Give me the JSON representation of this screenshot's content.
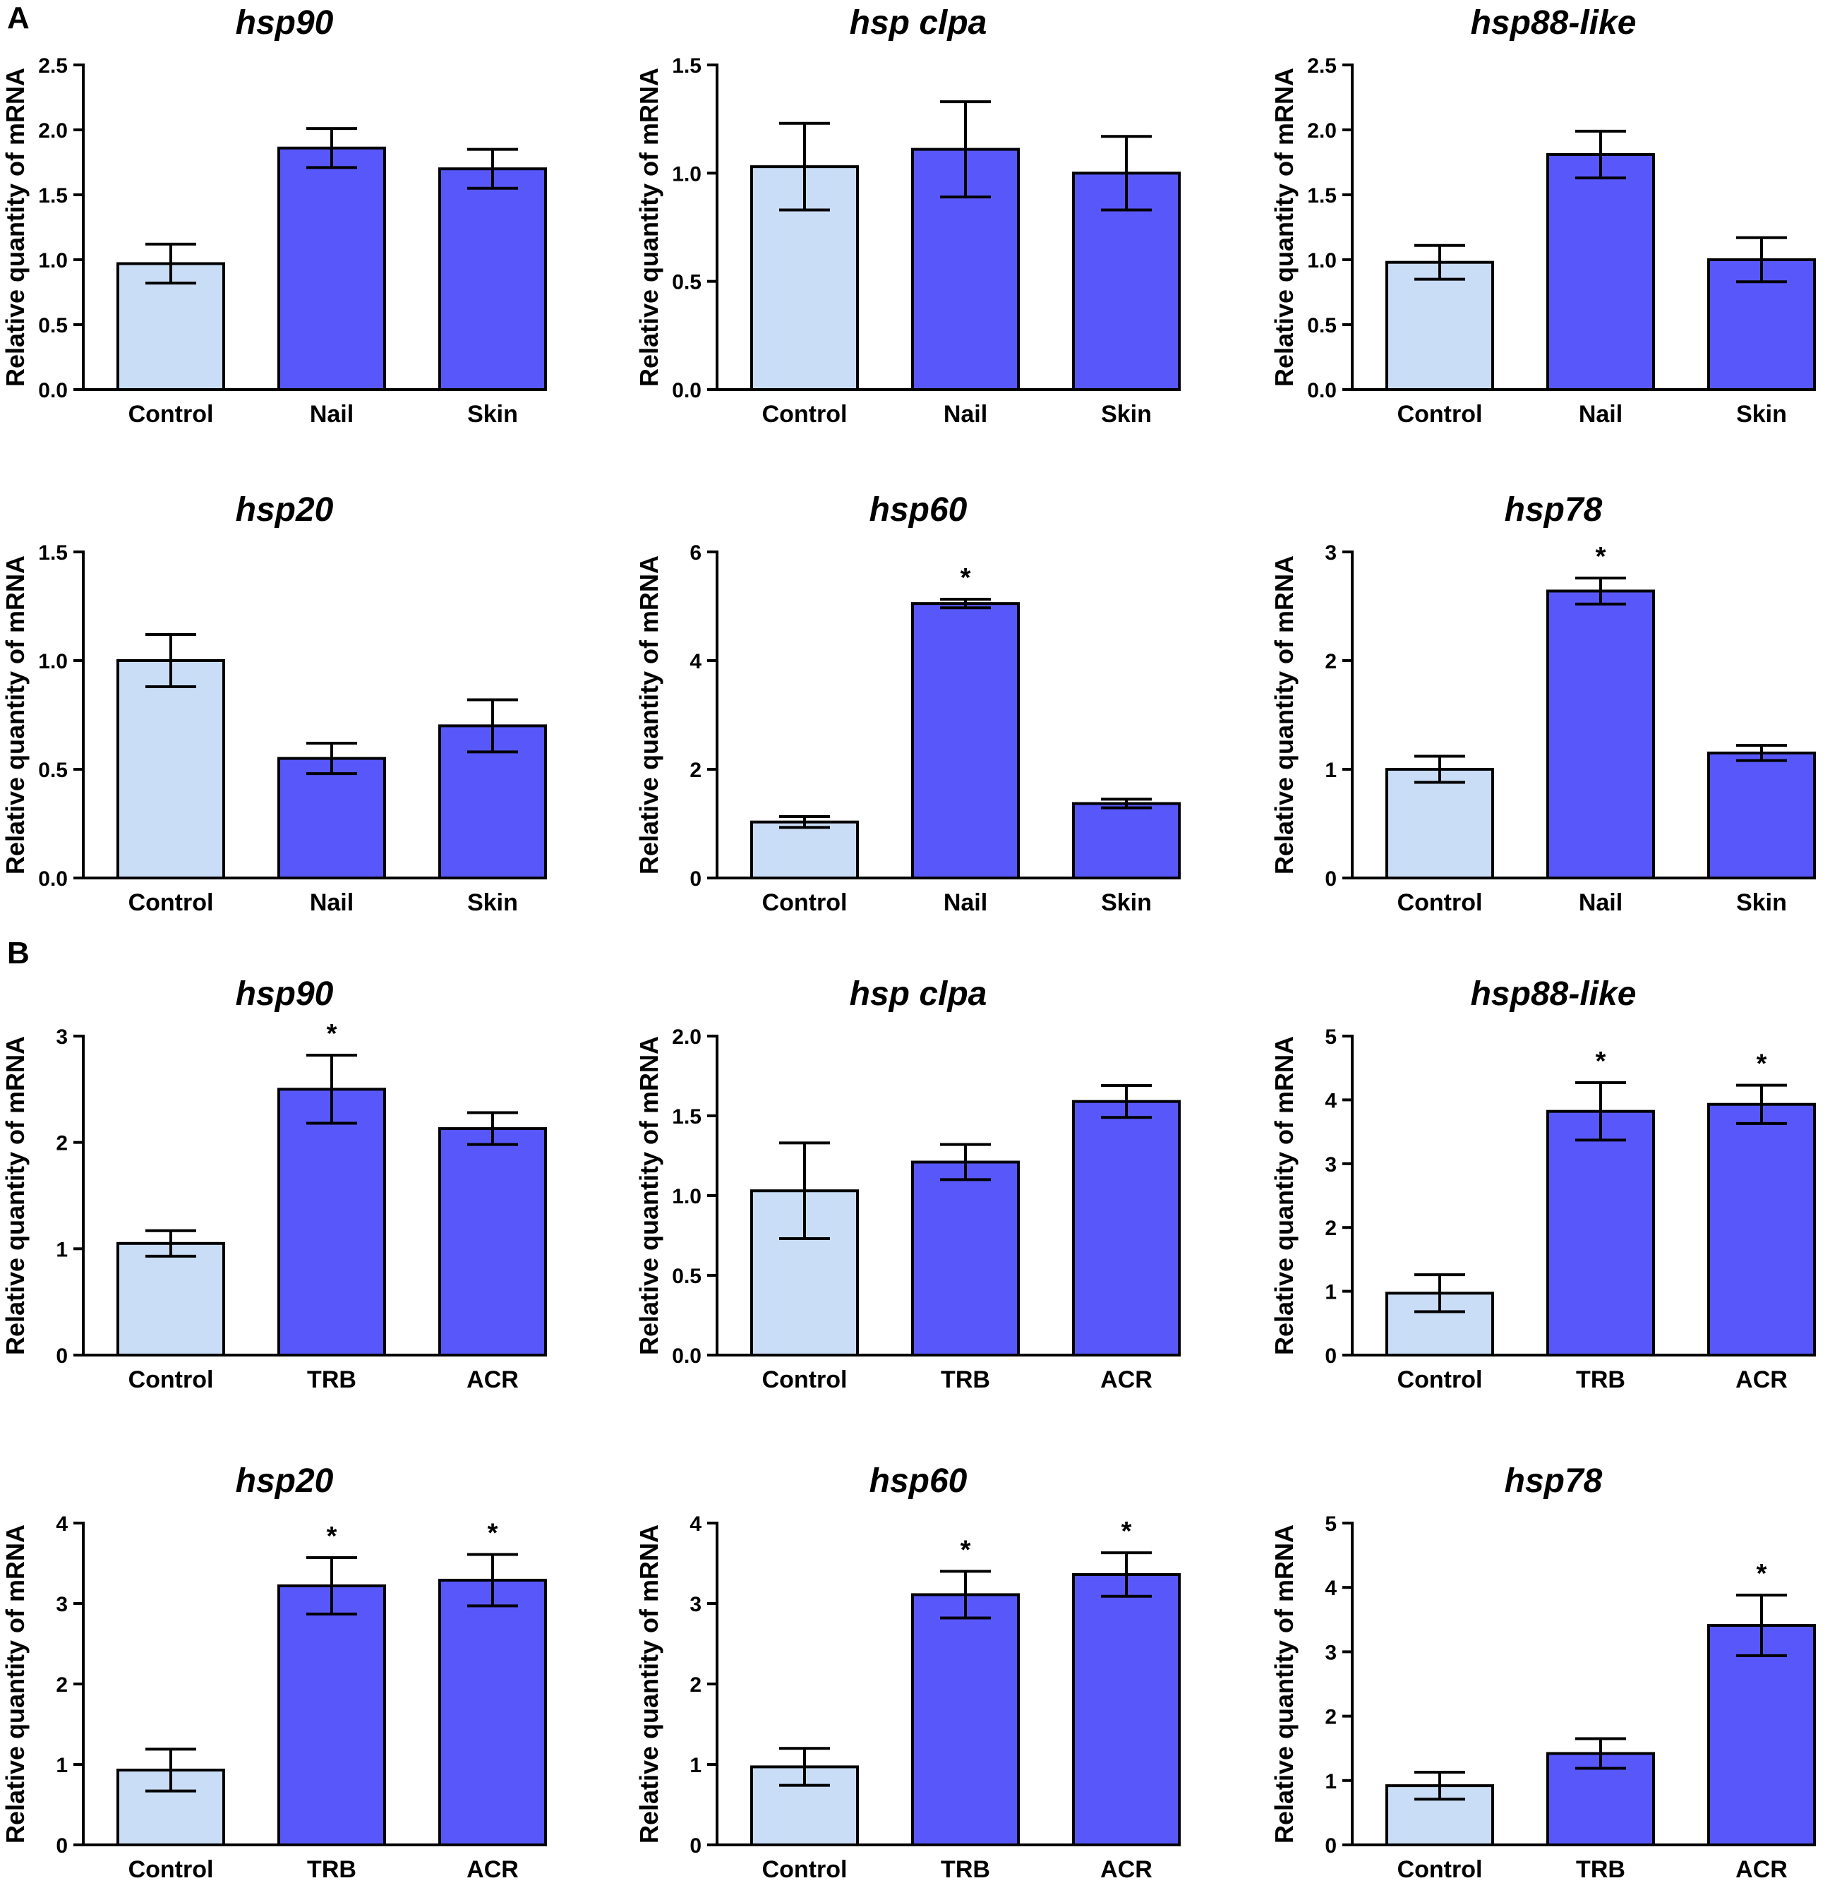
{
  "figure": {
    "panels": [
      {
        "letter": "A",
        "chart_indices": [
          0,
          1,
          2,
          3,
          4,
          5
        ]
      },
      {
        "letter": "B",
        "chart_indices": [
          6,
          7,
          8,
          9,
          10,
          11
        ]
      }
    ],
    "colors": {
      "control": "#c9ddf6",
      "treated": "#5858fa",
      "stroke": "#000000"
    }
  },
  "chart_data": [
    {
      "type": "bar",
      "panel": "A",
      "title": "hsp90",
      "ylabel": "Relative quantity of mRNA",
      "categories": [
        "Control",
        "Nail",
        "Skin"
      ],
      "values": [
        0.97,
        1.86,
        1.7
      ],
      "errors": [
        0.15,
        0.15,
        0.15
      ],
      "significant": [
        false,
        false,
        false
      ],
      "ylim": [
        0,
        2.5
      ],
      "yticks": [
        "0.0",
        "0.5",
        "1.0",
        "1.5",
        "2.0",
        "2.5"
      ]
    },
    {
      "type": "bar",
      "panel": "A",
      "title": "hsp clpa",
      "ylabel": "Relative quantity of mRNA",
      "categories": [
        "Control",
        "Nail",
        "Skin"
      ],
      "values": [
        1.03,
        1.11,
        1.0
      ],
      "errors": [
        0.2,
        0.22,
        0.17
      ],
      "significant": [
        false,
        false,
        false
      ],
      "ylim": [
        0,
        1.5
      ],
      "yticks": [
        "0.0",
        "0.5",
        "1.0",
        "1.5"
      ]
    },
    {
      "type": "bar",
      "panel": "A",
      "title": "hsp88-like",
      "ylabel": "Relative quantity of mRNA",
      "categories": [
        "Control",
        "Nail",
        "Skin"
      ],
      "values": [
        0.98,
        1.81,
        1.0
      ],
      "errors": [
        0.13,
        0.18,
        0.17
      ],
      "significant": [
        false,
        false,
        false
      ],
      "ylim": [
        0,
        2.5
      ],
      "yticks": [
        "0.0",
        "0.5",
        "1.0",
        "1.5",
        "2.0",
        "2.5"
      ]
    },
    {
      "type": "bar",
      "panel": "A",
      "title": "hsp20",
      "ylabel": "Relative quantity of mRNA",
      "categories": [
        "Control",
        "Nail",
        "Skin"
      ],
      "values": [
        1.0,
        0.55,
        0.7
      ],
      "errors": [
        0.12,
        0.07,
        0.12
      ],
      "significant": [
        false,
        false,
        false
      ],
      "ylim": [
        0,
        1.5
      ],
      "yticks": [
        "0.0",
        "0.5",
        "1.0",
        "1.5"
      ]
    },
    {
      "type": "bar",
      "panel": "A",
      "title": "hsp60",
      "ylabel": "Relative quantity of mRNA",
      "categories": [
        "Control",
        "Nail",
        "Skin"
      ],
      "values": [
        1.03,
        5.05,
        1.37
      ],
      "errors": [
        0.1,
        0.08,
        0.08
      ],
      "significant": [
        false,
        true,
        false
      ],
      "ylim": [
        0,
        6
      ],
      "yticks": [
        "0",
        "2",
        "4",
        "6"
      ]
    },
    {
      "type": "bar",
      "panel": "A",
      "title": "hsp78",
      "ylabel": "Relative quantity of mRNA",
      "categories": [
        "Control",
        "Nail",
        "Skin"
      ],
      "values": [
        1.0,
        2.64,
        1.15
      ],
      "errors": [
        0.12,
        0.12,
        0.07
      ],
      "significant": [
        false,
        true,
        false
      ],
      "ylim": [
        0,
        3
      ],
      "yticks": [
        "0",
        "1",
        "2",
        "3"
      ]
    },
    {
      "type": "bar",
      "panel": "B",
      "title": "hsp90",
      "ylabel": "Relative quantity of mRNA",
      "categories": [
        "Control",
        "TRB",
        "ACR"
      ],
      "values": [
        1.05,
        2.5,
        2.13
      ],
      "errors": [
        0.12,
        0.32,
        0.15
      ],
      "significant": [
        false,
        true,
        false
      ],
      "ylim": [
        0,
        3
      ],
      "yticks": [
        "0",
        "1",
        "2",
        "3"
      ]
    },
    {
      "type": "bar",
      "panel": "B",
      "title": "hsp clpa",
      "ylabel": "Relative quantity of mRNA",
      "categories": [
        "Control",
        "TRB",
        "ACR"
      ],
      "values": [
        1.03,
        1.21,
        1.59
      ],
      "errors": [
        0.3,
        0.11,
        0.1
      ],
      "significant": [
        false,
        false,
        false
      ],
      "ylim": [
        0,
        2.0
      ],
      "yticks": [
        "0.0",
        "0.5",
        "1.0",
        "1.5",
        "2.0"
      ]
    },
    {
      "type": "bar",
      "panel": "B",
      "title": "hsp88-like",
      "ylabel": "Relative quantity of mRNA",
      "categories": [
        "Control",
        "TRB",
        "ACR"
      ],
      "values": [
        0.97,
        3.82,
        3.93
      ],
      "errors": [
        0.29,
        0.45,
        0.3
      ],
      "significant": [
        false,
        true,
        true
      ],
      "ylim": [
        0,
        5
      ],
      "yticks": [
        "0",
        "1",
        "2",
        "3",
        "4",
        "5"
      ]
    },
    {
      "type": "bar",
      "panel": "B",
      "title": "hsp20",
      "ylabel": "Relative quantity of mRNA",
      "categories": [
        "Control",
        "TRB",
        "ACR"
      ],
      "values": [
        0.93,
        3.22,
        3.29
      ],
      "errors": [
        0.26,
        0.35,
        0.32
      ],
      "significant": [
        false,
        true,
        true
      ],
      "ylim": [
        0,
        4
      ],
      "yticks": [
        "0",
        "1",
        "2",
        "3",
        "4"
      ]
    },
    {
      "type": "bar",
      "panel": "B",
      "title": "hsp60",
      "ylabel": "Relative quantity of mRNA",
      "categories": [
        "Control",
        "TRB",
        "ACR"
      ],
      "values": [
        0.97,
        3.11,
        3.36
      ],
      "errors": [
        0.23,
        0.29,
        0.27
      ],
      "significant": [
        false,
        true,
        true
      ],
      "ylim": [
        0,
        4
      ],
      "yticks": [
        "0",
        "1",
        "2",
        "3",
        "4"
      ]
    },
    {
      "type": "bar",
      "panel": "B",
      "title": "hsp78",
      "ylabel": "Relative quantity of mRNA",
      "categories": [
        "Control",
        "TRB",
        "ACR"
      ],
      "values": [
        0.92,
        1.42,
        3.41
      ],
      "errors": [
        0.21,
        0.23,
        0.47
      ],
      "significant": [
        false,
        false,
        true
      ],
      "ylim": [
        0,
        5
      ],
      "yticks": [
        "0",
        "1",
        "2",
        "3",
        "4",
        "5"
      ]
    }
  ]
}
